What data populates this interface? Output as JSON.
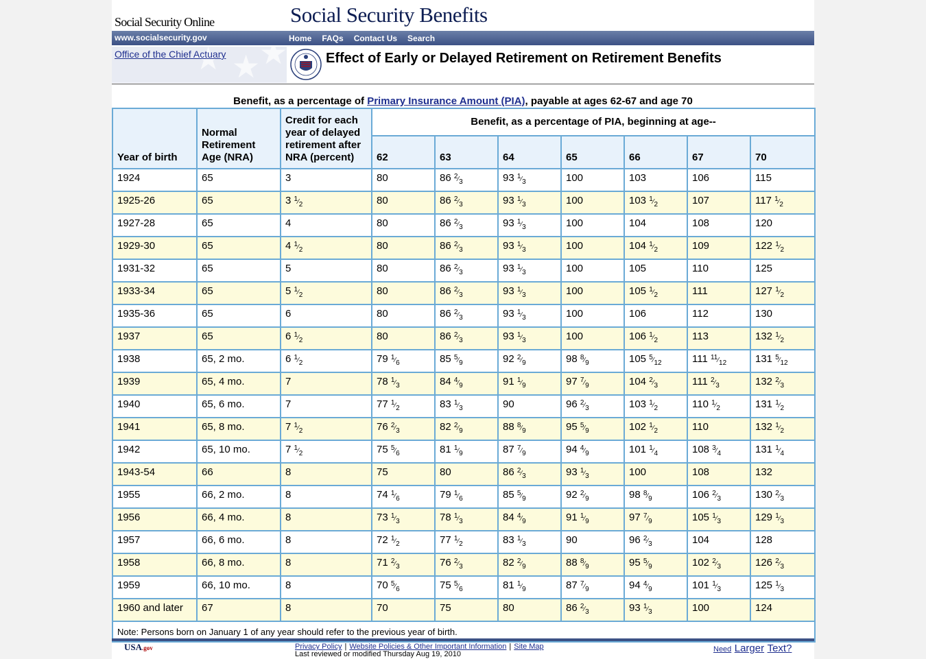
{
  "header": {
    "site_name": "Social Security Online",
    "title": "Social Security Benefits",
    "url": "www.socialsecurity.gov",
    "nav": [
      "Home",
      "FAQs",
      "Contact Us",
      "Search"
    ]
  },
  "subheader": {
    "office_link": "Office of the Chief Actuary",
    "page_heading": "Effect of Early or Delayed Retirement on Retirement Benefits"
  },
  "caption": {
    "prefix": "Benefit, as a percentage of ",
    "link": "Primary Insurance Amount (PIA)",
    "suffix": ", payable at ages 62-67 and age 70"
  },
  "table": {
    "col_year": "Year of birth",
    "col_nra": "Normal Retirement Age (NRA)",
    "col_credit": "Credit for each year of delayed retirement after NRA (percent)",
    "group_header": "Benefit, as a percentage of PIA, beginning at age--",
    "ages": [
      "62",
      "63",
      "64",
      "65",
      "66",
      "67",
      "70"
    ],
    "rows": [
      [
        "1924",
        "65",
        "3",
        "80",
        "86 2/3",
        "93 1/3",
        "100",
        "103",
        "106",
        "115"
      ],
      [
        "1925-26",
        "65",
        "3 1/2",
        "80",
        "86 2/3",
        "93 1/3",
        "100",
        "103 1/2",
        "107",
        "117 1/2"
      ],
      [
        "1927-28",
        "65",
        "4",
        "80",
        "86 2/3",
        "93 1/3",
        "100",
        "104",
        "108",
        "120"
      ],
      [
        "1929-30",
        "65",
        "4 1/2",
        "80",
        "86 2/3",
        "93 1/3",
        "100",
        "104 1/2",
        "109",
        "122 1/2"
      ],
      [
        "1931-32",
        "65",
        "5",
        "80",
        "86 2/3",
        "93 1/3",
        "100",
        "105",
        "110",
        "125"
      ],
      [
        "1933-34",
        "65",
        "5 1/2",
        "80",
        "86 2/3",
        "93 1/3",
        "100",
        "105 1/2",
        "111",
        "127 1/2"
      ],
      [
        "1935-36",
        "65",
        "6",
        "80",
        "86 2/3",
        "93 1/3",
        "100",
        "106",
        "112",
        "130"
      ],
      [
        "1937",
        "65",
        "6 1/2",
        "80",
        "86 2/3",
        "93 1/3",
        "100",
        "106 1/2",
        "113",
        "132 1/2"
      ],
      [
        "1938",
        "65, 2 mo.",
        "6 1/2",
        "79 1/6",
        "85 5/9",
        "92 2/9",
        "98 8/9",
        "105 5/12",
        "111 11/12",
        "131 5/12"
      ],
      [
        "1939",
        "65, 4 mo.",
        "7",
        "78 1/3",
        "84 4/9",
        "91 1/9",
        "97 7/9",
        "104 2/3",
        "111 2/3",
        "132 2/3"
      ],
      [
        "1940",
        "65, 6 mo.",
        "7",
        "77 1/2",
        "83 1/3",
        "90",
        "96 2/3",
        "103 1/2",
        "110 1/2",
        "131 1/2"
      ],
      [
        "1941",
        "65, 8 mo.",
        "7 1/2",
        "76 2/3",
        "82 2/9",
        "88 8/9",
        "95 5/9",
        "102 1/2",
        "110",
        "132 1/2"
      ],
      [
        "1942",
        "65, 10 mo.",
        "7 1/2",
        "75 5/6",
        "81 1/9",
        "87 7/9",
        "94 4/9",
        "101 1/4",
        "108 3/4",
        "131 1/4"
      ],
      [
        "1943-54",
        "66",
        "8",
        "75",
        "80",
        "86 2/3",
        "93 1/3",
        "100",
        "108",
        "132"
      ],
      [
        "1955",
        "66, 2 mo.",
        "8",
        "74 1/6",
        "79 1/6",
        "85 5/9",
        "92 2/9",
        "98 8/9",
        "106 2/3",
        "130 2/3"
      ],
      [
        "1956",
        "66, 4 mo.",
        "8",
        "73 1/3",
        "78 1/3",
        "84 4/9",
        "91 1/9",
        "97 7/9",
        "105 1/3",
        "129 1/3"
      ],
      [
        "1957",
        "66, 6 mo.",
        "8",
        "72 1/2",
        "77 1/2",
        "83 1/3",
        "90",
        "96 2/3",
        "104",
        "128"
      ],
      [
        "1958",
        "66, 8 mo.",
        "8",
        "71 2/3",
        "76 2/3",
        "82 2/9",
        "88 8/9",
        "95 5/9",
        "102 2/3",
        "126 2/3"
      ],
      [
        "1959",
        "66, 10 mo.",
        "8",
        "70 5/6",
        "75 5/6",
        "81 1/9",
        "87 7/9",
        "94 4/9",
        "101 1/3",
        "125 1/3"
      ],
      [
        "1960 and later",
        "67",
        "8",
        "70",
        "75",
        "80",
        "86 2/3",
        "93 1/3",
        "100",
        "124"
      ]
    ],
    "note": "Note: Persons born on January 1 of any year should refer to the previous year of birth."
  },
  "footer": {
    "usagov": "USA",
    "usagov_suffix": ".gov",
    "links": [
      "Privacy Policy",
      "Website Policies & Other Important Information",
      "Site Map"
    ],
    "modified": "Last reviewed or modified Thursday Aug 19, 2010",
    "need": "Need",
    "larger": "Larger",
    "text": "Text?"
  },
  "colors": {
    "nav_bar": "#3c5185",
    "table_border": "#6aaad6",
    "header_cell_bg": "#e8f2fb",
    "alt_row_bg": "#fdfbdc",
    "link": "#1f2f8f"
  }
}
